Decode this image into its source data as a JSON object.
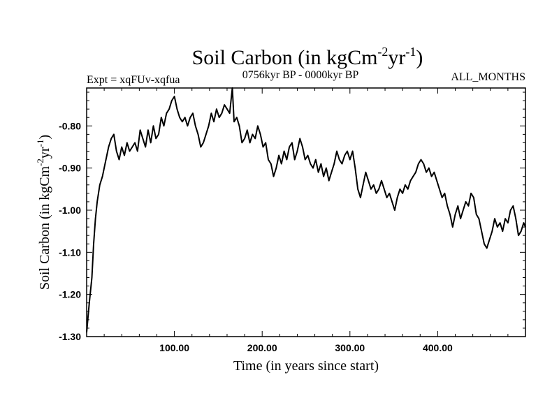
{
  "chart_data": {
    "type": "line",
    "title": "Soil Carbon (in kgCm",
    "title_sup1": "-2",
    "title_mid": "yr",
    "title_sup2": "-1",
    "title_end": ")",
    "left_subtitle": "Expt = xqFUv-xqfua",
    "center_subtitle": "0756kyr BP - 0000kyr BP",
    "right_subtitle": "ALL_MONTHS",
    "xlabel": "Time (in years since start)",
    "ylabel_main": "Soil Carbon (in kgCm",
    "ylabel_sup1": "-2",
    "ylabel_mid": "yr",
    "ylabel_sup2": "-1",
    "ylabel_end": ")",
    "xlim": [
      0,
      500
    ],
    "ylim": [
      -1.3,
      -0.71
    ],
    "xticks": [
      100,
      200,
      300,
      400
    ],
    "xtick_labels": [
      "100.00",
      "200.00",
      "300.00",
      "400.00"
    ],
    "yticks": [
      -1.3,
      -1.2,
      -1.1,
      -1.0,
      -0.9,
      -0.8
    ],
    "ytick_labels": [
      "-1.30",
      "-1.20",
      "-1.10",
      "-1.00",
      "-0.90",
      "-0.80"
    ],
    "series": [
      {
        "name": "soil carbon",
        "color": "#000000",
        "points": [
          [
            0,
            -1.29
          ],
          [
            3,
            -1.22
          ],
          [
            6,
            -1.16
          ],
          [
            8,
            -1.08
          ],
          [
            10,
            -1.02
          ],
          [
            12,
            -0.98
          ],
          [
            15,
            -0.94
          ],
          [
            18,
            -0.92
          ],
          [
            20,
            -0.9
          ],
          [
            23,
            -0.87
          ],
          [
            25,
            -0.85
          ],
          [
            28,
            -0.83
          ],
          [
            31,
            -0.82
          ],
          [
            34,
            -0.86
          ],
          [
            37,
            -0.88
          ],
          [
            40,
            -0.85
          ],
          [
            43,
            -0.87
          ],
          [
            46,
            -0.84
          ],
          [
            49,
            -0.86
          ],
          [
            52,
            -0.85
          ],
          [
            55,
            -0.84
          ],
          [
            58,
            -0.86
          ],
          [
            61,
            -0.81
          ],
          [
            64,
            -0.83
          ],
          [
            67,
            -0.85
          ],
          [
            70,
            -0.81
          ],
          [
            73,
            -0.84
          ],
          [
            76,
            -0.8
          ],
          [
            79,
            -0.83
          ],
          [
            82,
            -0.82
          ],
          [
            85,
            -0.78
          ],
          [
            88,
            -0.8
          ],
          [
            91,
            -0.77
          ],
          [
            94,
            -0.76
          ],
          [
            97,
            -0.74
          ],
          [
            100,
            -0.73
          ],
          [
            103,
            -0.76
          ],
          [
            106,
            -0.78
          ],
          [
            109,
            -0.79
          ],
          [
            112,
            -0.78
          ],
          [
            115,
            -0.8
          ],
          [
            118,
            -0.78
          ],
          [
            121,
            -0.77
          ],
          [
            124,
            -0.8
          ],
          [
            127,
            -0.82
          ],
          [
            130,
            -0.85
          ],
          [
            133,
            -0.84
          ],
          [
            136,
            -0.82
          ],
          [
            139,
            -0.8
          ],
          [
            142,
            -0.77
          ],
          [
            145,
            -0.79
          ],
          [
            148,
            -0.76
          ],
          [
            151,
            -0.78
          ],
          [
            154,
            -0.77
          ],
          [
            157,
            -0.75
          ],
          [
            160,
            -0.76
          ],
          [
            163,
            -0.77
          ],
          [
            166,
            -0.71
          ],
          [
            168,
            -0.79
          ],
          [
            171,
            -0.78
          ],
          [
            174,
            -0.8
          ],
          [
            177,
            -0.84
          ],
          [
            180,
            -0.83
          ],
          [
            183,
            -0.81
          ],
          [
            186,
            -0.84
          ],
          [
            189,
            -0.82
          ],
          [
            192,
            -0.83
          ],
          [
            195,
            -0.8
          ],
          [
            198,
            -0.82
          ],
          [
            201,
            -0.85
          ],
          [
            204,
            -0.84
          ],
          [
            207,
            -0.88
          ],
          [
            210,
            -0.89
          ],
          [
            213,
            -0.92
          ],
          [
            216,
            -0.9
          ],
          [
            219,
            -0.87
          ],
          [
            222,
            -0.89
          ],
          [
            225,
            -0.86
          ],
          [
            228,
            -0.88
          ],
          [
            231,
            -0.85
          ],
          [
            234,
            -0.84
          ],
          [
            237,
            -0.88
          ],
          [
            240,
            -0.86
          ],
          [
            243,
            -0.83
          ],
          [
            246,
            -0.85
          ],
          [
            249,
            -0.88
          ],
          [
            252,
            -0.87
          ],
          [
            255,
            -0.89
          ],
          [
            258,
            -0.9
          ],
          [
            261,
            -0.88
          ],
          [
            264,
            -0.91
          ],
          [
            267,
            -0.89
          ],
          [
            270,
            -0.92
          ],
          [
            273,
            -0.9
          ],
          [
            276,
            -0.93
          ],
          [
            279,
            -0.91
          ],
          [
            282,
            -0.89
          ],
          [
            285,
            -0.86
          ],
          [
            288,
            -0.88
          ],
          [
            291,
            -0.89
          ],
          [
            294,
            -0.87
          ],
          [
            297,
            -0.86
          ],
          [
            300,
            -0.88
          ],
          [
            303,
            -0.86
          ],
          [
            306,
            -0.9
          ],
          [
            309,
            -0.95
          ],
          [
            312,
            -0.97
          ],
          [
            315,
            -0.94
          ],
          [
            318,
            -0.91
          ],
          [
            321,
            -0.93
          ],
          [
            324,
            -0.95
          ],
          [
            327,
            -0.94
          ],
          [
            330,
            -0.96
          ],
          [
            333,
            -0.95
          ],
          [
            336,
            -0.93
          ],
          [
            339,
            -0.95
          ],
          [
            342,
            -0.97
          ],
          [
            345,
            -0.96
          ],
          [
            348,
            -0.98
          ],
          [
            351,
            -1.0
          ],
          [
            354,
            -0.97
          ],
          [
            357,
            -0.95
          ],
          [
            360,
            -0.96
          ],
          [
            363,
            -0.94
          ],
          [
            366,
            -0.95
          ],
          [
            369,
            -0.93
          ],
          [
            372,
            -0.92
          ],
          [
            375,
            -0.91
          ],
          [
            378,
            -0.89
          ],
          [
            381,
            -0.88
          ],
          [
            384,
            -0.89
          ],
          [
            387,
            -0.91
          ],
          [
            390,
            -0.9
          ],
          [
            393,
            -0.92
          ],
          [
            396,
            -0.91
          ],
          [
            399,
            -0.93
          ],
          [
            402,
            -0.95
          ],
          [
            405,
            -0.97
          ],
          [
            408,
            -0.96
          ],
          [
            411,
            -0.99
          ],
          [
            414,
            -1.01
          ],
          [
            417,
            -1.04
          ],
          [
            420,
            -1.01
          ],
          [
            423,
            -0.99
          ],
          [
            426,
            -1.02
          ],
          [
            429,
            -1.0
          ],
          [
            432,
            -0.98
          ],
          [
            435,
            -0.99
          ],
          [
            438,
            -0.96
          ],
          [
            441,
            -0.97
          ],
          [
            444,
            -1.01
          ],
          [
            447,
            -1.02
          ],
          [
            450,
            -1.05
          ],
          [
            453,
            -1.08
          ],
          [
            456,
            -1.09
          ],
          [
            459,
            -1.07
          ],
          [
            462,
            -1.05
          ],
          [
            465,
            -1.02
          ],
          [
            468,
            -1.04
          ],
          [
            471,
            -1.03
          ],
          [
            474,
            -1.05
          ],
          [
            477,
            -1.02
          ],
          [
            480,
            -1.03
          ],
          [
            483,
            -1.0
          ],
          [
            486,
            -0.99
          ],
          [
            489,
            -1.02
          ],
          [
            492,
            -1.06
          ],
          [
            495,
            -1.05
          ],
          [
            498,
            -1.03
          ],
          [
            500,
            -1.04
          ]
        ]
      }
    ]
  }
}
